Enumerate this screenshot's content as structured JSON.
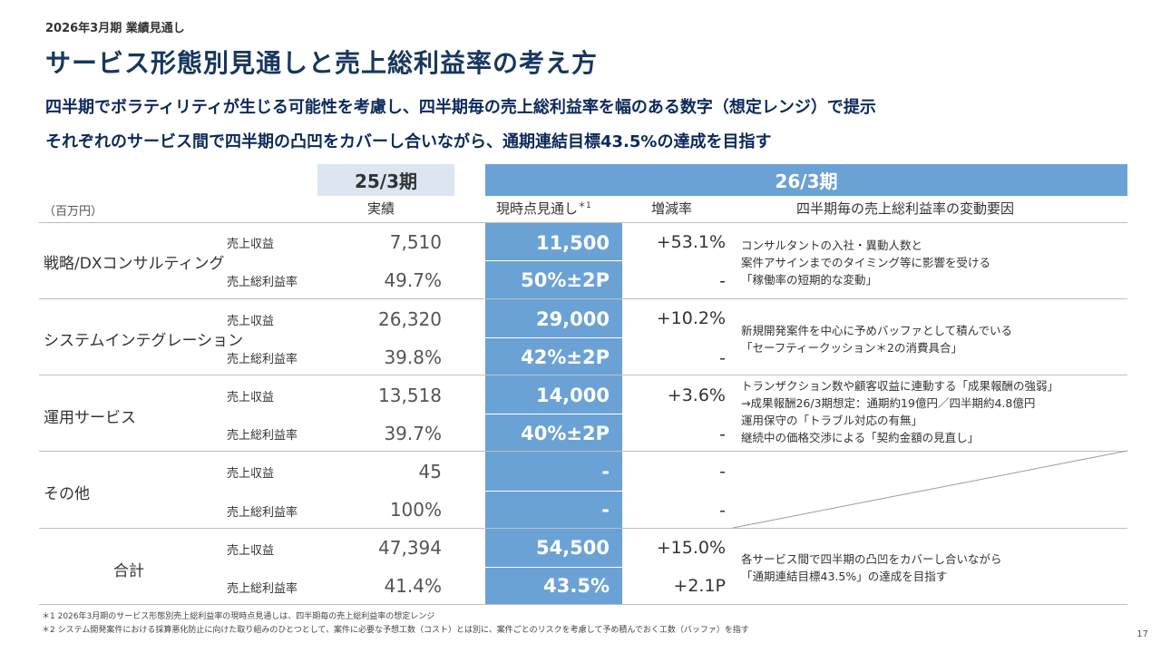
{
  "header": {
    "eyebrow": "2026年3月期 業績見通し",
    "title": "サービス形態別見通しと売上総利益率の考え方",
    "lead1": "四半期でボラティリティが生じる可能性を考慮し、四半期毎の売上総利益率を幅のある数字（想定レンジ）で提示",
    "lead2": "それぞれのサービス間で四半期の凸凹をカバーし合いながら、通期連結目標43.5%の達成を目指す"
  },
  "table": {
    "period_prev": "25/3期",
    "period_cur": "26/3期",
    "unit": "（百万円）",
    "col_actual": "実績",
    "col_forecast": "現時点見通し",
    "col_forecast_mark": "＊1",
    "col_change": "増減率",
    "col_factor": "四半期毎の売上総利益率の変動要因",
    "rows": [
      {
        "segment": "戦略/DXコンサルティング",
        "revenue_label": "売上収益",
        "revenue_actual": "7,510",
        "revenue_forecast": "11,500",
        "revenue_change": "+53.1%",
        "margin_label": "売上総利益率",
        "margin_actual": "49.7%",
        "margin_forecast": "50%±2P",
        "margin_change": "-",
        "notes": [
          "コンサルタントの入社・異動人数と",
          "案件アサインまでのタイミング等に影響を受ける",
          "「稼働率の短期的な変動」"
        ]
      },
      {
        "segment": "システムインテグレーション",
        "revenue_label": "売上収益",
        "revenue_actual": "26,320",
        "revenue_forecast": "29,000",
        "revenue_change": "+10.2%",
        "margin_label": "売上総利益率",
        "margin_actual": "39.8%",
        "margin_forecast": "42%±2P",
        "margin_change": "-",
        "notes": [
          "新規開発案件を中心に予めバッファとして積んでいる",
          "「セーフティークッション＊2の消費具合」"
        ]
      },
      {
        "segment": "運用サービス",
        "revenue_label": "売上収益",
        "revenue_actual": "13,518",
        "revenue_forecast": "14,000",
        "revenue_change": "+3.6%",
        "margin_label": "売上総利益率",
        "margin_actual": "39.7%",
        "margin_forecast": "40%±2P",
        "margin_change": "-",
        "notes": [
          "トランザクション数や顧客収益に連動する「成果報酬の強弱」",
          "→成果報酬26/3期想定：通期約19億円／四半期約4.8億円",
          "運用保守の「トラブル対応の有無」",
          "継続中の価格交渉による「契約金額の見直し」"
        ]
      },
      {
        "segment": "その他",
        "revenue_label": "売上収益",
        "revenue_actual": "45",
        "revenue_forecast": "-",
        "revenue_change": "-",
        "margin_label": "売上総利益率",
        "margin_actual": "100%",
        "margin_forecast": "-",
        "margin_change": "-",
        "notes": []
      },
      {
        "segment": "合計",
        "revenue_label": "売上収益",
        "revenue_actual": "47,394",
        "revenue_forecast": "54,500",
        "revenue_change": "+15.0%",
        "margin_label": "売上総利益率",
        "margin_actual": "41.4%",
        "margin_forecast": "43.5%",
        "margin_change": "+2.1P",
        "notes": [
          "各サービス間で四半期の凸凹をカバーし合いながら",
          "「通期連結目標43.5%」の達成を目指す"
        ]
      }
    ]
  },
  "footnotes": [
    "＊1 2026年3月期のサービス形態別売上総利益率の現時点見通しは、四半期毎の売上総利益率の想定レンジ",
    "＊2 システム開発案件における採算悪化防止に向けた取り組みのひとつとして、案件に必要な予想工数（コスト）とは別に、案件ごとのリスクを考慮して予め積んでおく工数（バッファ）を指す"
  ],
  "page_number": "17",
  "colors": {
    "title": "#17375e",
    "forecast_column": "#6ba2d6",
    "prev_header": "#dce6f1"
  }
}
